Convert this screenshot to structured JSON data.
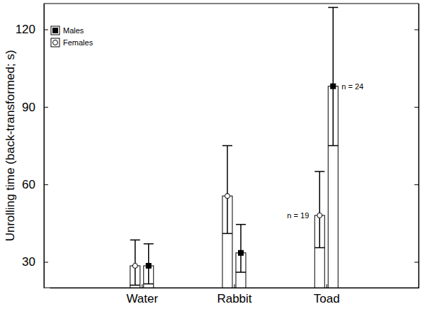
{
  "chart_data": {
    "type": "bar",
    "y_label": "Unrolling time (back-transformed; s)",
    "categories": [
      "Water",
      "Rabbit",
      "Toad"
    ],
    "series": [
      {
        "name": "Females",
        "color": "#ffffff",
        "marker": "circle",
        "values": [
          28.5,
          55.5,
          48
        ],
        "ci_lower": [
          21,
          41,
          35.5
        ],
        "ci_upper": [
          38.5,
          75,
          65
        ]
      },
      {
        "name": "Males",
        "color": "#000000",
        "marker": "square",
        "values": [
          28.5,
          33.5,
          98
        ],
        "ci_lower": [
          21.5,
          26,
          75
        ],
        "ci_upper": [
          37,
          44.5,
          128.5
        ]
      }
    ],
    "ylim": [
      20,
      130
    ],
    "yticks": [
      30,
      60,
      90,
      120
    ],
    "legend": "upper left",
    "annotations": [
      {
        "text": "n = 19",
        "x": "Toad",
        "series": "Females"
      },
      {
        "text": "n = 24",
        "x": "Toad",
        "series": "Males"
      }
    ]
  }
}
